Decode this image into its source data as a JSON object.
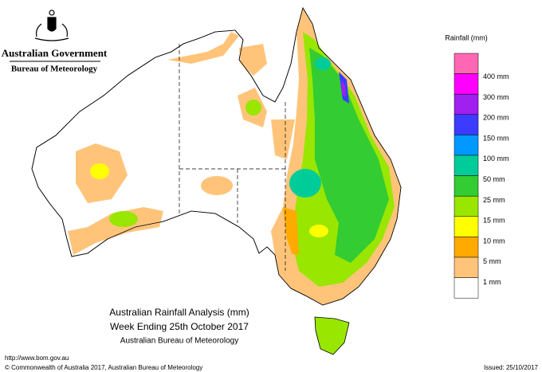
{
  "header": {
    "agency": "Australian Government",
    "bureau": "Bureau of Meteorology"
  },
  "title": {
    "line1": "Australian Rainfall Analysis (mm)",
    "line2": "Week Ending 25th October 2017",
    "line3": "Australian Bureau of Meteorology"
  },
  "legend": {
    "title": "Rainfall (mm)",
    "top_color": "#ff66b3",
    "entries": [
      {
        "label": "400 mm",
        "color": "#ff00ff"
      },
      {
        "label": "300 mm",
        "color": "#a020f0"
      },
      {
        "label": "200 mm",
        "color": "#3c3cff"
      },
      {
        "label": "150 mm",
        "color": "#0099ff"
      },
      {
        "label": "100 mm",
        "color": "#00cc99"
      },
      {
        "label": "50 mm",
        "color": "#33cc33"
      },
      {
        "label": "25 mm",
        "color": "#99e600"
      },
      {
        "label": "15 mm",
        "color": "#ffff00"
      },
      {
        "label": "10 mm",
        "color": "#ffaa00"
      },
      {
        "label": "5 mm",
        "color": "#ffc47a"
      },
      {
        "label": "1 mm",
        "color": "#ffffff"
      }
    ]
  },
  "footer": {
    "url": "http://www.bom.gov.au",
    "copyright": "© Commonwealth of Australia 2017, Australian Bureau of Meteorology",
    "issued": "Issued: 25/10/2017"
  }
}
